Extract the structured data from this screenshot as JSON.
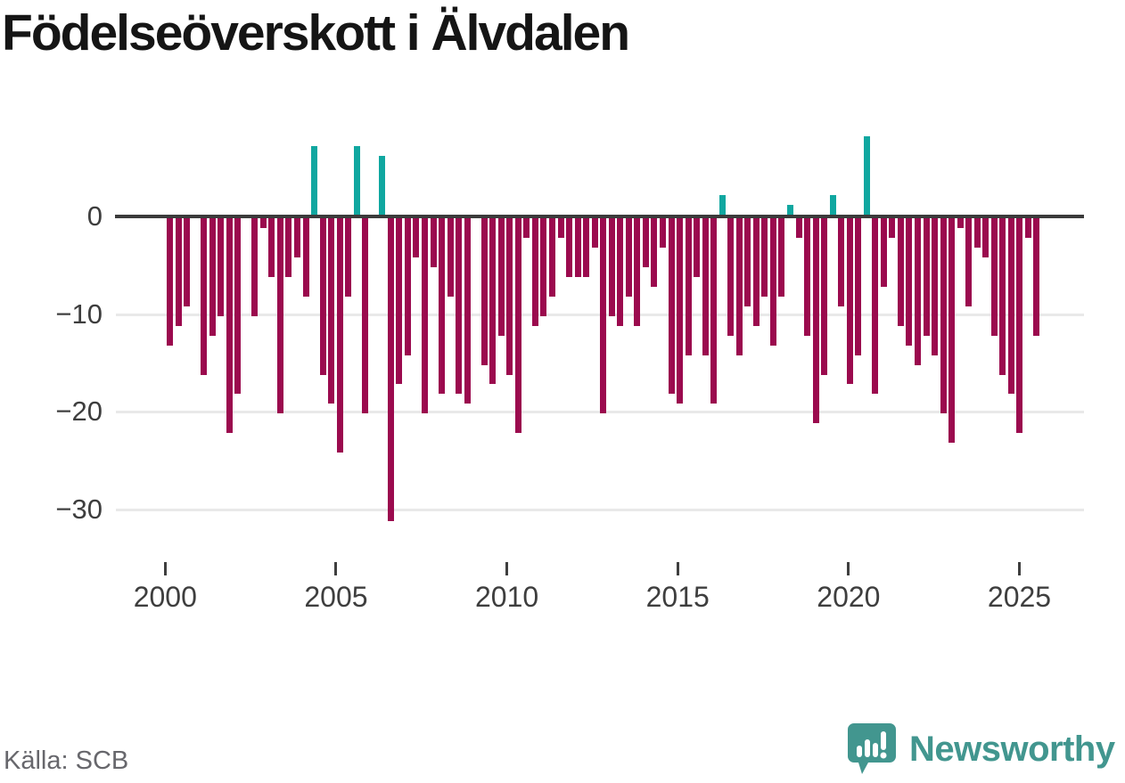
{
  "title": "Födelseöverskott i Älvdalen",
  "source_label": "Källa: SCB",
  "branding": {
    "logo_text": "Newsworthy",
    "logo_icon": "speech-bubble-bar-chart-icon",
    "logo_color": "#42968f"
  },
  "colors": {
    "negative_bar": "#9b0a4e",
    "positive_bar": "#10a7a0",
    "zero_line": "#3b3b3b",
    "gridline": "#e9e9e9",
    "axis_text": "#3e3e3e",
    "title_text": "#151515",
    "source_text": "#67676c",
    "background": "#ffffff"
  },
  "chart_data": {
    "type": "bar",
    "title": "Födelseöverskott i Älvdalen",
    "frequency": "quarterly",
    "x": [
      "2000Q1",
      "2000Q2",
      "2000Q3",
      "2000Q4",
      "2001Q1",
      "2001Q2",
      "2001Q3",
      "2001Q4",
      "2002Q1",
      "2002Q2",
      "2002Q3",
      "2002Q4",
      "2003Q1",
      "2003Q2",
      "2003Q3",
      "2003Q4",
      "2004Q1",
      "2004Q2",
      "2004Q3",
      "2004Q4",
      "2005Q1",
      "2005Q2",
      "2005Q3",
      "2005Q4",
      "2006Q1",
      "2006Q2",
      "2006Q3",
      "2006Q4",
      "2007Q1",
      "2007Q2",
      "2007Q3",
      "2007Q4",
      "2008Q1",
      "2008Q2",
      "2008Q3",
      "2008Q4",
      "2009Q1",
      "2009Q2",
      "2009Q3",
      "2009Q4",
      "2010Q1",
      "2010Q2",
      "2010Q3",
      "2010Q4",
      "2011Q1",
      "2011Q2",
      "2011Q3",
      "2011Q4",
      "2012Q1",
      "2012Q2",
      "2012Q3",
      "2012Q4",
      "2013Q1",
      "2013Q2",
      "2013Q3",
      "2013Q4",
      "2014Q1",
      "2014Q2",
      "2014Q3",
      "2014Q4",
      "2015Q1",
      "2015Q2",
      "2015Q3",
      "2015Q4",
      "2016Q1",
      "2016Q2",
      "2016Q3",
      "2016Q4",
      "2017Q1",
      "2017Q2",
      "2017Q3",
      "2017Q4",
      "2018Q1",
      "2018Q2",
      "2018Q3",
      "2018Q4",
      "2019Q1",
      "2019Q2",
      "2019Q3",
      "2019Q4",
      "2020Q1",
      "2020Q2",
      "2020Q3",
      "2020Q4",
      "2021Q1",
      "2021Q2",
      "2021Q3",
      "2021Q4",
      "2022Q1",
      "2022Q2",
      "2022Q3",
      "2022Q4",
      "2023Q1",
      "2023Q2",
      "2023Q3",
      "2023Q4",
      "2024Q1",
      "2024Q2",
      "2024Q3",
      "2024Q4",
      "2025Q1",
      "2025Q2",
      "2025Q3"
    ],
    "values": [
      -13,
      -11,
      -9,
      0,
      -16,
      -12,
      -10,
      -22,
      -18,
      0,
      -10,
      -1,
      -6,
      -20,
      -6,
      -4,
      -8,
      7,
      -16,
      -19,
      -24,
      -8,
      7,
      -20,
      0,
      6,
      -31,
      -17,
      -14,
      -4,
      -20,
      -5,
      -18,
      -8,
      -18,
      -19,
      0,
      -15,
      -17,
      -12,
      -16,
      -22,
      -2,
      -11,
      -10,
      -8,
      -2,
      -6,
      -6,
      -6,
      -3,
      -20,
      -10,
      -11,
      -8,
      -11,
      -5,
      -7,
      -3,
      -18,
      -19,
      -14,
      -6,
      -14,
      -19,
      2,
      -12,
      -14,
      -9,
      -11,
      -8,
      -13,
      -8,
      1,
      -2,
      -12,
      -21,
      -16,
      2,
      -9,
      -17,
      -14,
      8,
      -18,
      -7,
      -2,
      -11,
      -13,
      -15,
      -12,
      -14,
      -20,
      -23,
      -1,
      -9,
      -3,
      -4,
      -12,
      -16,
      -18,
      -22,
      -2,
      -12
    ],
    "positive_color": "#10a7a0",
    "negative_color": "#9b0a4e",
    "y_ticks": [
      0,
      -10,
      -20,
      -30
    ],
    "y_tick_labels": [
      "0",
      "−10",
      "−20",
      "−30"
    ],
    "x_tick_labels": [
      "2000",
      "2005",
      "2010",
      "2015",
      "2020",
      "2025"
    ],
    "ylim": [
      -33,
      9
    ],
    "grid": true,
    "legend": false
  }
}
